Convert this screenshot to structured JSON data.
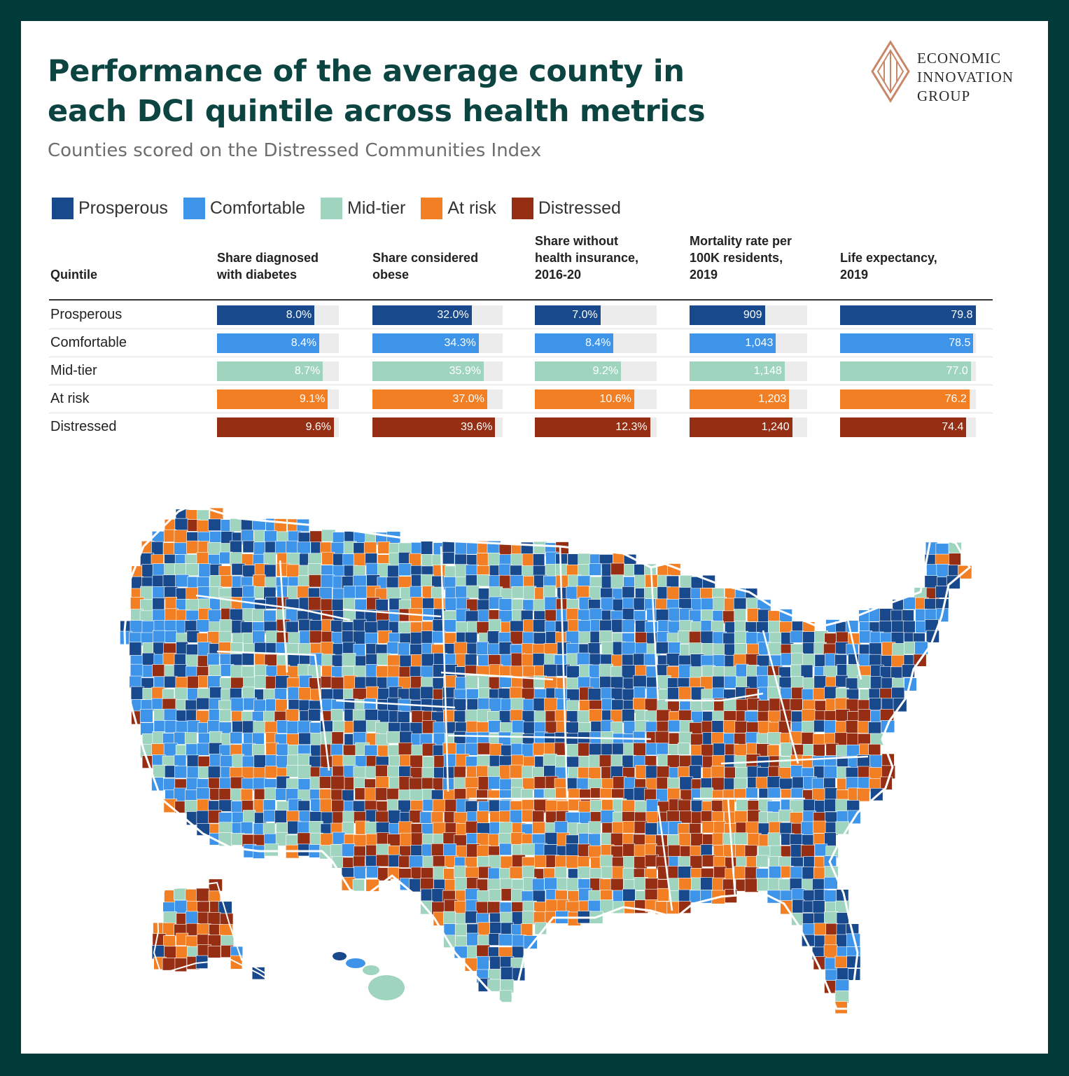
{
  "title": "Performance of the average county in each DCI quintile across health metrics",
  "subtitle": "Counties scored on the Distressed Communities Index",
  "logo": {
    "lines": [
      "ECONOMIC",
      "INNOVATION",
      "GROUP"
    ],
    "icon": "diamond-logo-icon"
  },
  "colors": {
    "Prosperous": "#17498c",
    "Comfortable": "#3d94e8",
    "Mid-tier": "#9fd4bf",
    "At risk": "#f27f24",
    "Distressed": "#952e12",
    "frame": "#013b39"
  },
  "legend": [
    "Prosperous",
    "Comfortable",
    "Mid-tier",
    "At risk",
    "Distressed"
  ],
  "chart_data": {
    "type": "table",
    "title": "Performance of the average county in each DCI quintile across health metrics",
    "subtitle": "Counties scored on the Distressed Communities Index",
    "row_header": "Quintile",
    "rows": [
      "Prosperous",
      "Comfortable",
      "Mid-tier",
      "At risk",
      "Distressed"
    ],
    "columns": [
      {
        "header": [
          "Share diagnosed",
          "with diabetes"
        ],
        "max": 10.0,
        "labels": [
          "8.0%",
          "8.4%",
          "8.7%",
          "9.1%",
          "9.6%"
        ],
        "values": [
          8.0,
          8.4,
          8.7,
          9.1,
          9.6
        ]
      },
      {
        "header": [
          "Share considered",
          "obese"
        ],
        "max": 42.0,
        "labels": [
          "32.0%",
          "34.3%",
          "35.9%",
          "37.0%",
          "39.6%"
        ],
        "values": [
          32.0,
          34.3,
          35.9,
          37.0,
          39.6
        ]
      },
      {
        "header": [
          "Share without",
          "health insurance,",
          "2016-20"
        ],
        "max": 13.0,
        "labels": [
          "7.0%",
          "8.4%",
          "9.2%",
          "10.6%",
          "12.3%"
        ],
        "values": [
          7.0,
          8.4,
          9.2,
          10.6,
          12.3
        ]
      },
      {
        "header": [
          "Mortality rate per",
          "100K residents,",
          "2019"
        ],
        "max": 1420,
        "labels": [
          "909",
          "1,043",
          "1,148",
          "1,203",
          "1,240"
        ],
        "values": [
          909,
          1043,
          1148,
          1203,
          1240
        ]
      },
      {
        "header": [
          "Life expectancy,",
          "2019"
        ],
        "max": 80.0,
        "labels": [
          "79.8",
          "78.5",
          "77.0",
          "76.2",
          "74.4"
        ],
        "values": [
          79.8,
          78.5,
          77.0,
          76.2,
          74.4
        ]
      }
    ]
  },
  "map": {
    "type": "choropleth",
    "description_region": "Contiguous United States, Alaska and Hawaii counties colored by DCI quintile",
    "legend": [
      "Prosperous",
      "Comfortable",
      "Mid-tier",
      "At risk",
      "Distressed"
    ]
  }
}
